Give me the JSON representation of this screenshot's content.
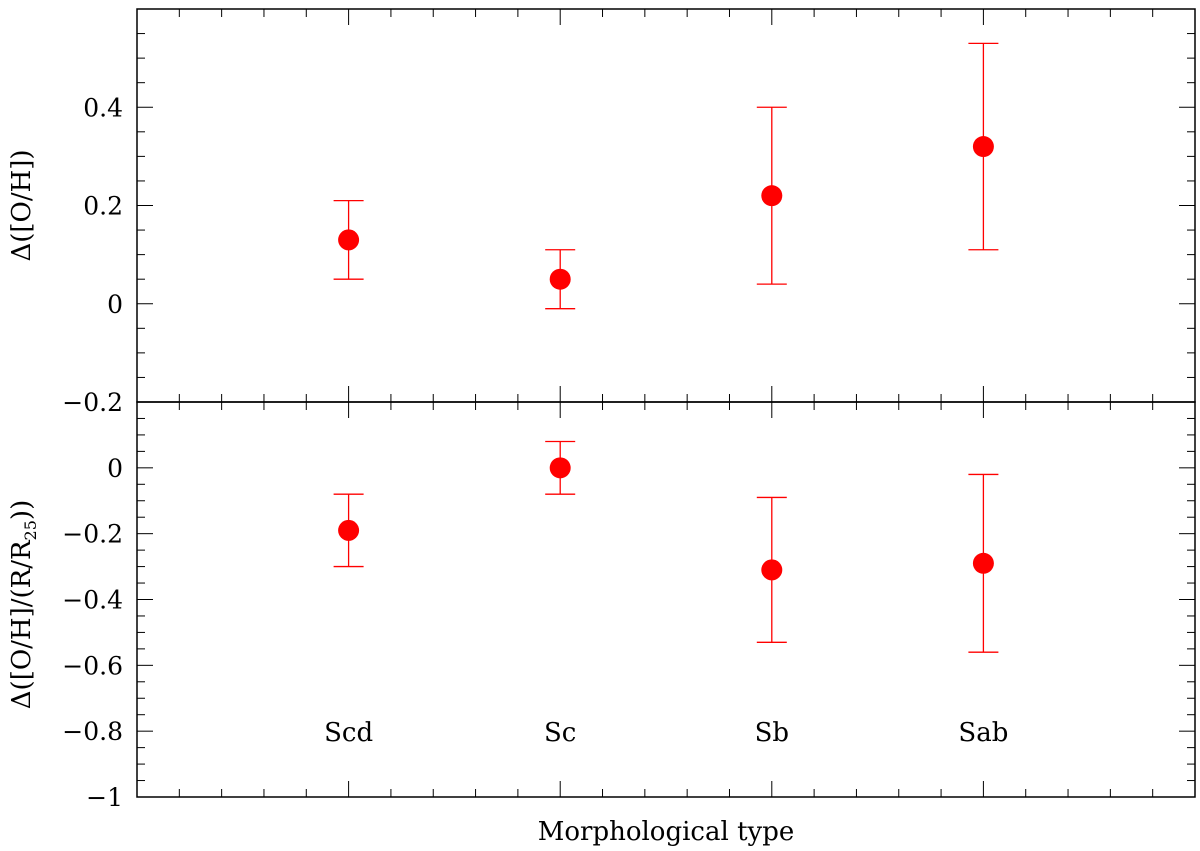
{
  "chart_data": [
    {
      "type": "scatter",
      "panel": "top",
      "ylabel": "Δ([O/H])",
      "ylim": [
        -0.2,
        0.6
      ],
      "y_ticks": [
        {
          "value": -0.2,
          "label": "−0.2"
        },
        {
          "value": 0,
          "label": "0"
        },
        {
          "value": 0.2,
          "label": "0.2"
        },
        {
          "value": 0.4,
          "label": "0.4"
        }
      ],
      "categories": [
        "Scd",
        "Sc",
        "Sb",
        "Sab"
      ],
      "points": [
        {
          "category": "Scd",
          "x": 5,
          "y": 0.13,
          "err_low": 0.05,
          "err_high": 0.21
        },
        {
          "category": "Sc",
          "x": 10,
          "y": 0.05,
          "err_low": -0.01,
          "err_high": 0.11
        },
        {
          "category": "Sb",
          "x": 15,
          "y": 0.22,
          "err_low": 0.04,
          "err_high": 0.4
        },
        {
          "category": "Sab",
          "x": 20,
          "y": 0.32,
          "err_low": 0.11,
          "err_high": 0.53
        }
      ]
    },
    {
      "type": "scatter",
      "panel": "bottom",
      "ylabel_main": "Δ([O/H]/(R/R",
      "ylabel_sub": "25",
      "ylabel_tail": "))",
      "ylim": [
        -1,
        0.2
      ],
      "y_ticks": [
        {
          "value": -1,
          "label": "−1"
        },
        {
          "value": -0.8,
          "label": "−0.8"
        },
        {
          "value": -0.6,
          "label": "−0.6"
        },
        {
          "value": -0.4,
          "label": "−0.4"
        },
        {
          "value": -0.2,
          "label": "−0.2"
        },
        {
          "value": 0,
          "label": "0"
        }
      ],
      "categories": [
        "Scd",
        "Sc",
        "Sb",
        "Sab"
      ],
      "points": [
        {
          "category": "Scd",
          "x": 5,
          "y": -0.19,
          "err_low": -0.3,
          "err_high": -0.08
        },
        {
          "category": "Sc",
          "x": 10,
          "y": 0.0,
          "err_low": -0.08,
          "err_high": 0.08
        },
        {
          "category": "Sb",
          "x": 15,
          "y": -0.31,
          "err_low": -0.53,
          "err_high": -0.09
        },
        {
          "category": "Sab",
          "x": 20,
          "y": -0.29,
          "err_low": -0.56,
          "err_high": -0.02
        }
      ],
      "type_labels": [
        {
          "text": "Scd",
          "x": 5,
          "y": -0.83
        },
        {
          "text": "Sc",
          "x": 10,
          "y": -0.83
        },
        {
          "text": "Sb",
          "x": 15,
          "y": -0.83
        },
        {
          "text": "Sab",
          "x": 20,
          "y": -0.83
        }
      ]
    }
  ],
  "shared": {
    "xlabel": "Morphological type",
    "xlim": [
      0,
      25
    ],
    "marker_color": "#ff0000",
    "axis_color": "#000000"
  }
}
